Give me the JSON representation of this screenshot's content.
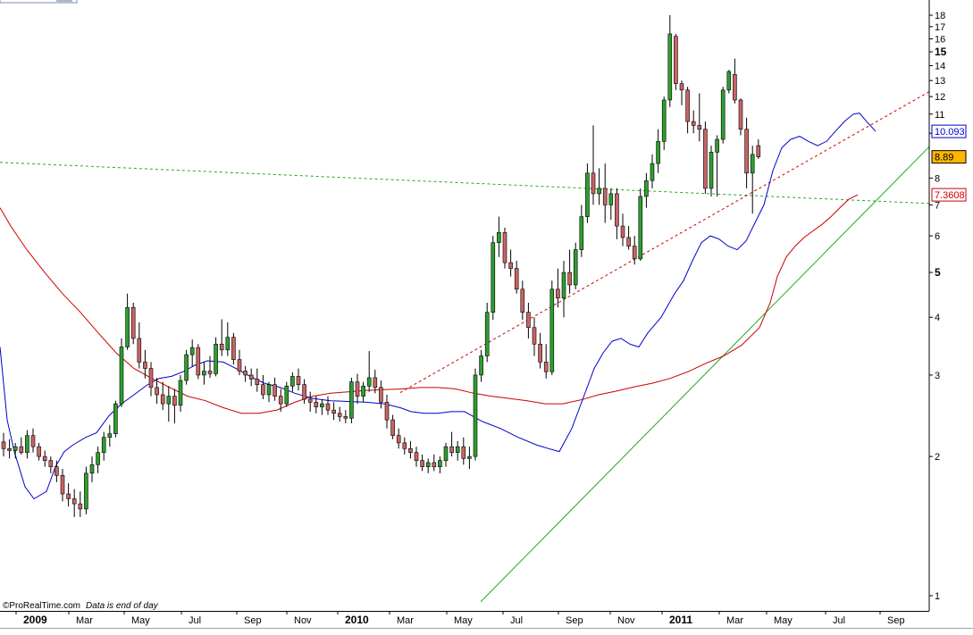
{
  "chart_data": {
    "type": "candlestick",
    "credit": "©ProRealTime.com",
    "note": "Data is end of day",
    "x_axis": {
      "labels": [
        {
          "text": "2009",
          "bold": true
        },
        {
          "text": "Mar",
          "bold": false
        },
        {
          "text": "May",
          "bold": false
        },
        {
          "text": "Jul",
          "bold": false
        },
        {
          "text": "Sep",
          "bold": false
        },
        {
          "text": "Nov",
          "bold": false
        },
        {
          "text": "2010",
          "bold": true
        },
        {
          "text": "Mar",
          "bold": false
        },
        {
          "text": "May",
          "bold": false
        },
        {
          "text": "Jul",
          "bold": false
        },
        {
          "text": "Sep",
          "bold": false
        },
        {
          "text": "Nov",
          "bold": false
        },
        {
          "text": "2011",
          "bold": true
        },
        {
          "text": "Mar",
          "bold": false
        },
        {
          "text": "May",
          "bold": false
        },
        {
          "text": "Jul",
          "bold": false
        },
        {
          "text": "Sep",
          "bold": false
        }
      ]
    },
    "y_axis": {
      "scale": "log",
      "range": [
        0.9,
        18.4
      ],
      "ticks": [
        {
          "value": 1,
          "label": "1",
          "bold": false
        },
        {
          "value": 2,
          "label": "2",
          "bold": false
        },
        {
          "value": 3,
          "label": "3",
          "bold": false
        },
        {
          "value": 4,
          "label": "4",
          "bold": false
        },
        {
          "value": 5,
          "label": "5",
          "bold": true
        },
        {
          "value": 6,
          "label": "6",
          "bold": false
        },
        {
          "value": 7,
          "label": "7",
          "bold": false
        },
        {
          "value": 8,
          "label": "8",
          "bold": false
        },
        {
          "value": 10,
          "label": "10",
          "bold": true
        },
        {
          "value": 11,
          "label": "11",
          "bold": false
        },
        {
          "value": 12,
          "label": "12",
          "bold": false
        },
        {
          "value": 13,
          "label": "13",
          "bold": false
        },
        {
          "value": 14,
          "label": "14",
          "bold": false
        },
        {
          "value": 15,
          "label": "15",
          "bold": true
        },
        {
          "value": 16,
          "label": "16",
          "bold": false
        },
        {
          "value": 17,
          "label": "17",
          "bold": false
        },
        {
          "value": 18,
          "label": "18",
          "bold": false
        }
      ]
    },
    "value_labels": [
      {
        "text": "10.093",
        "value": 10.093,
        "color": "#0000cc",
        "fill": "#ffffff"
      },
      {
        "text": "8.89",
        "value": 8.89,
        "color": "#000000",
        "fill": "#ffb400"
      },
      {
        "text": "7.3608",
        "value": 7.3608,
        "color": "#cc0000",
        "fill": "#ffffff"
      }
    ],
    "colors": {
      "up_candle": "#2e9e2e",
      "down_candle": "#c86464",
      "short_ma": "#0000cc",
      "long_ma": "#cc0000",
      "trendline_green": "#22aa22",
      "trendline_red": "#cc0000"
    },
    "candles": [
      [
        2.15,
        2.25,
        2.0,
        2.08
      ],
      [
        2.08,
        2.18,
        1.98,
        2.06
      ],
      [
        2.06,
        2.14,
        1.98,
        2.1
      ],
      [
        2.1,
        2.2,
        2.02,
        2.04
      ],
      [
        2.04,
        2.28,
        1.98,
        2.22
      ],
      [
        2.22,
        2.3,
        2.04,
        2.1
      ],
      [
        2.1,
        2.14,
        1.96,
        2.0
      ],
      [
        2.0,
        2.06,
        1.9,
        1.96
      ],
      [
        1.96,
        2.0,
        1.84,
        1.9
      ],
      [
        1.9,
        1.96,
        1.76,
        1.82
      ],
      [
        1.82,
        1.88,
        1.6,
        1.66
      ],
      [
        1.66,
        1.75,
        1.56,
        1.62
      ],
      [
        1.62,
        1.7,
        1.48,
        1.58
      ],
      [
        1.58,
        1.68,
        1.48,
        1.54
      ],
      [
        1.54,
        1.9,
        1.5,
        1.84
      ],
      [
        1.84,
        2.0,
        1.76,
        1.92
      ],
      [
        1.92,
        2.1,
        1.84,
        2.04
      ],
      [
        2.04,
        2.26,
        1.96,
        2.2
      ],
      [
        2.2,
        2.34,
        2.1,
        2.24
      ],
      [
        2.24,
        2.64,
        2.2,
        2.6
      ],
      [
        2.6,
        3.6,
        2.56,
        3.45
      ],
      [
        3.45,
        4.5,
        3.4,
        4.2
      ],
      [
        4.2,
        4.3,
        3.5,
        3.6
      ],
      [
        3.6,
        3.9,
        3.1,
        3.2
      ],
      [
        3.2,
        3.4,
        2.95,
        3.1
      ],
      [
        3.1,
        3.2,
        2.7,
        2.82
      ],
      [
        2.82,
        2.96,
        2.6,
        2.72
      ],
      [
        2.72,
        2.9,
        2.52,
        2.6
      ],
      [
        2.6,
        2.84,
        2.38,
        2.7
      ],
      [
        2.7,
        2.8,
        2.36,
        2.58
      ],
      [
        2.58,
        3.0,
        2.5,
        2.92
      ],
      [
        2.92,
        3.4,
        2.86,
        3.32
      ],
      [
        3.32,
        3.58,
        3.12,
        3.44
      ],
      [
        3.44,
        3.5,
        2.94,
        3.0
      ],
      [
        3.0,
        3.2,
        2.86,
        3.06
      ],
      [
        3.06,
        3.3,
        2.96,
        3.02
      ],
      [
        3.02,
        3.62,
        2.98,
        3.5
      ],
      [
        3.5,
        3.96,
        3.3,
        3.4
      ],
      [
        3.4,
        3.9,
        3.3,
        3.62
      ],
      [
        3.62,
        3.7,
        3.16,
        3.24
      ],
      [
        3.24,
        3.4,
        3.0,
        3.06
      ],
      [
        3.06,
        3.14,
        2.9,
        3.0
      ],
      [
        3.0,
        3.1,
        2.84,
        2.94
      ],
      [
        2.94,
        3.1,
        2.76,
        2.86
      ],
      [
        2.86,
        3.0,
        2.66,
        2.72
      ],
      [
        2.72,
        2.9,
        2.62,
        2.86
      ],
      [
        2.86,
        2.96,
        2.64,
        2.7
      ],
      [
        2.7,
        2.8,
        2.5,
        2.6
      ],
      [
        2.6,
        2.9,
        2.56,
        2.84
      ],
      [
        2.84,
        3.04,
        2.76,
        2.98
      ],
      [
        2.98,
        3.1,
        2.78,
        2.86
      ],
      [
        2.86,
        2.94,
        2.6,
        2.66
      ],
      [
        2.66,
        2.76,
        2.5,
        2.62
      ],
      [
        2.62,
        2.7,
        2.48,
        2.56
      ],
      [
        2.56,
        2.66,
        2.46,
        2.6
      ],
      [
        2.6,
        2.7,
        2.46,
        2.52
      ],
      [
        2.52,
        2.62,
        2.4,
        2.48
      ],
      [
        2.48,
        2.56,
        2.38,
        2.44
      ],
      [
        2.44,
        2.52,
        2.36,
        2.42
      ],
      [
        2.42,
        2.96,
        2.36,
        2.9
      ],
      [
        2.9,
        3.02,
        2.6,
        2.7
      ],
      [
        2.7,
        2.9,
        2.62,
        2.84
      ],
      [
        2.84,
        3.38,
        2.76,
        2.96
      ],
      [
        2.96,
        3.08,
        2.74,
        2.82
      ],
      [
        2.82,
        2.92,
        2.54,
        2.62
      ],
      [
        2.62,
        2.72,
        2.3,
        2.4
      ],
      [
        2.4,
        2.46,
        2.18,
        2.22
      ],
      [
        2.22,
        2.3,
        2.08,
        2.14
      ],
      [
        2.14,
        2.2,
        2.02,
        2.08
      ],
      [
        2.08,
        2.16,
        1.98,
        2.04
      ],
      [
        2.04,
        2.1,
        1.9,
        1.96
      ],
      [
        1.96,
        2.02,
        1.86,
        1.9
      ],
      [
        1.9,
        1.98,
        1.84,
        1.94
      ],
      [
        1.94,
        2.02,
        1.86,
        1.9
      ],
      [
        1.9,
        2.0,
        1.84,
        1.96
      ],
      [
        1.96,
        2.14,
        1.9,
        2.1
      ],
      [
        2.1,
        2.26,
        2.0,
        2.04
      ],
      [
        2.04,
        2.16,
        1.96,
        2.1
      ],
      [
        2.1,
        2.2,
        1.92,
        1.98
      ],
      [
        1.98,
        2.1,
        1.88,
        2.0
      ],
      [
        2.0,
        3.1,
        1.96,
        3.0
      ],
      [
        3.0,
        3.4,
        2.9,
        3.3
      ],
      [
        3.3,
        4.3,
        3.2,
        4.1
      ],
      [
        4.1,
        6.0,
        3.95,
        5.8
      ],
      [
        5.8,
        6.6,
        5.4,
        6.1
      ],
      [
        6.1,
        6.25,
        5.1,
        5.25
      ],
      [
        5.25,
        5.6,
        4.9,
        5.1
      ],
      [
        5.1,
        5.3,
        4.5,
        4.6
      ],
      [
        4.6,
        4.8,
        3.95,
        4.1
      ],
      [
        4.1,
        4.3,
        3.6,
        3.8
      ],
      [
        3.8,
        4.0,
        3.3,
        3.5
      ],
      [
        3.5,
        3.7,
        3.1,
        3.2
      ],
      [
        3.2,
        3.5,
        2.95,
        3.05
      ],
      [
        3.05,
        4.8,
        3.0,
        4.6
      ],
      [
        4.6,
        5.1,
        4.2,
        4.4
      ],
      [
        4.4,
        5.3,
        4.0,
        5.0
      ],
      [
        5.0,
        5.6,
        4.5,
        4.7
      ],
      [
        4.7,
        5.8,
        4.6,
        5.6
      ],
      [
        5.6,
        7.0,
        5.4,
        6.6
      ],
      [
        6.6,
        8.6,
        6.4,
        8.2
      ],
      [
        8.2,
        10.4,
        7.0,
        7.4
      ],
      [
        7.4,
        8.4,
        7.0,
        7.6
      ],
      [
        7.6,
        8.6,
        6.4,
        7.0
      ],
      [
        7.0,
        7.6,
        6.5,
        7.4
      ],
      [
        7.4,
        7.6,
        5.9,
        6.3
      ],
      [
        6.3,
        6.7,
        5.7,
        5.95
      ],
      [
        5.95,
        6.3,
        5.6,
        5.7
      ],
      [
        5.7,
        6.0,
        5.2,
        5.35
      ],
      [
        5.35,
        7.6,
        5.3,
        7.3
      ],
      [
        7.3,
        8.2,
        6.9,
        7.9
      ],
      [
        7.9,
        9.0,
        7.6,
        8.6
      ],
      [
        8.6,
        10.2,
        8.2,
        9.6
      ],
      [
        9.6,
        12.0,
        9.2,
        11.8
      ],
      [
        11.8,
        18.0,
        11.4,
        16.4
      ],
      [
        16.2,
        16.4,
        12.4,
        12.8
      ],
      [
        12.8,
        13.0,
        11.5,
        12.4
      ],
      [
        12.4,
        12.6,
        10.0,
        10.6
      ],
      [
        10.6,
        11.2,
        10.0,
        10.4
      ],
      [
        10.4,
        12.2,
        9.6,
        10.2
      ],
      [
        10.2,
        10.6,
        7.4,
        7.6
      ],
      [
        7.6,
        9.4,
        7.3,
        9.1
      ],
      [
        9.1,
        9.9,
        7.3,
        9.7
      ],
      [
        9.7,
        12.6,
        9.5,
        12.4
      ],
      [
        12.4,
        13.7,
        12.2,
        13.6
      ],
      [
        13.4,
        14.5,
        11.6,
        11.8
      ],
      [
        11.8,
        11.9,
        9.9,
        10.2
      ],
      [
        10.2,
        10.8,
        7.6,
        8.2
      ],
      [
        8.2,
        9.4,
        6.7,
        9.0
      ],
      [
        9.4,
        9.7,
        8.8,
        8.89
      ]
    ],
    "short_ma": [
      [
        0,
        3.45
      ],
      [
        8,
        2.4
      ],
      [
        16,
        2.05
      ],
      [
        28,
        1.72
      ],
      [
        38,
        1.62
      ],
      [
        52,
        1.68
      ],
      [
        62,
        1.9
      ],
      [
        72,
        2.05
      ],
      [
        82,
        2.12
      ],
      [
        96,
        2.2
      ],
      [
        108,
        2.25
      ],
      [
        122,
        2.45
      ],
      [
        136,
        2.6
      ],
      [
        150,
        2.72
      ],
      [
        164,
        2.85
      ],
      [
        178,
        2.95
      ],
      [
        192,
        2.98
      ],
      [
        205,
        3.05
      ],
      [
        218,
        3.15
      ],
      [
        232,
        3.22
      ],
      [
        250,
        3.2
      ],
      [
        264,
        3.1
      ],
      [
        280,
        2.98
      ],
      [
        296,
        2.88
      ],
      [
        314,
        2.82
      ],
      [
        330,
        2.74
      ],
      [
        350,
        2.67
      ],
      [
        370,
        2.64
      ],
      [
        390,
        2.63
      ],
      [
        410,
        2.62
      ],
      [
        430,
        2.6
      ],
      [
        448,
        2.55
      ],
      [
        460,
        2.5
      ],
      [
        475,
        2.48
      ],
      [
        490,
        2.48
      ],
      [
        505,
        2.5
      ],
      [
        520,
        2.5
      ],
      [
        540,
        2.38
      ],
      [
        560,
        2.3
      ],
      [
        580,
        2.2
      ],
      [
        600,
        2.12
      ],
      [
        614,
        2.08
      ],
      [
        626,
        2.05
      ],
      [
        640,
        2.3
      ],
      [
        655,
        2.75
      ],
      [
        665,
        3.1
      ],
      [
        675,
        3.35
      ],
      [
        685,
        3.55
      ],
      [
        695,
        3.6
      ],
      [
        705,
        3.5
      ],
      [
        715,
        3.45
      ],
      [
        725,
        3.7
      ],
      [
        740,
        4.0
      ],
      [
        755,
        4.5
      ],
      [
        765,
        4.8
      ],
      [
        775,
        5.3
      ],
      [
        785,
        5.8
      ],
      [
        795,
        6.0
      ],
      [
        805,
        5.9
      ],
      [
        815,
        5.7
      ],
      [
        825,
        5.6
      ],
      [
        835,
        5.85
      ],
      [
        845,
        6.4
      ],
      [
        855,
        7.0
      ],
      [
        865,
        8.3
      ],
      [
        875,
        9.3
      ],
      [
        885,
        9.7
      ],
      [
        895,
        9.85
      ],
      [
        905,
        9.6
      ],
      [
        915,
        9.4
      ],
      [
        925,
        9.6
      ],
      [
        935,
        10.1
      ],
      [
        945,
        10.6
      ],
      [
        955,
        11.0
      ],
      [
        962,
        11.05
      ],
      [
        970,
        10.6
      ],
      [
        980,
        10.093
      ]
    ],
    "long_ma": [
      [
        0,
        6.9
      ],
      [
        12,
        6.3
      ],
      [
        30,
        5.6
      ],
      [
        50,
        5.0
      ],
      [
        70,
        4.5
      ],
      [
        90,
        4.1
      ],
      [
        110,
        3.7
      ],
      [
        130,
        3.35
      ],
      [
        150,
        3.1
      ],
      [
        170,
        2.95
      ],
      [
        190,
        2.82
      ],
      [
        210,
        2.7
      ],
      [
        230,
        2.64
      ],
      [
        250,
        2.55
      ],
      [
        270,
        2.48
      ],
      [
        290,
        2.48
      ],
      [
        310,
        2.52
      ],
      [
        330,
        2.62
      ],
      [
        350,
        2.7
      ],
      [
        370,
        2.74
      ],
      [
        390,
        2.76
      ],
      [
        410,
        2.78
      ],
      [
        430,
        2.79
      ],
      [
        450,
        2.8
      ],
      [
        470,
        2.82
      ],
      [
        490,
        2.82
      ],
      [
        510,
        2.8
      ],
      [
        530,
        2.74
      ],
      [
        550,
        2.7
      ],
      [
        570,
        2.67
      ],
      [
        590,
        2.64
      ],
      [
        610,
        2.6
      ],
      [
        630,
        2.6
      ],
      [
        650,
        2.65
      ],
      [
        670,
        2.72
      ],
      [
        690,
        2.77
      ],
      [
        710,
        2.83
      ],
      [
        730,
        2.88
      ],
      [
        750,
        2.95
      ],
      [
        770,
        3.05
      ],
      [
        790,
        3.18
      ],
      [
        810,
        3.3
      ],
      [
        830,
        3.48
      ],
      [
        850,
        3.8
      ],
      [
        862,
        4.3
      ],
      [
        870,
        4.9
      ],
      [
        880,
        5.4
      ],
      [
        890,
        5.7
      ],
      [
        900,
        5.95
      ],
      [
        910,
        6.15
      ],
      [
        920,
        6.35
      ],
      [
        930,
        6.6
      ],
      [
        940,
        6.9
      ],
      [
        950,
        7.2
      ],
      [
        960,
        7.3608
      ]
    ],
    "trendlines": [
      {
        "style": "dashed",
        "color": "#22aa22",
        "p1": [
          0,
          8.65
        ],
        "p2": [
          1040,
          7.05
        ]
      },
      {
        "style": "dashed",
        "color": "#cc0000",
        "p1": [
          448,
          2.75
        ],
        "p2": [
          1040,
          12.3
        ]
      },
      {
        "style": "solid",
        "color": "#22aa22",
        "p1": [
          538,
          0.97
        ],
        "p2": [
          1040,
          9.35
        ]
      }
    ]
  }
}
